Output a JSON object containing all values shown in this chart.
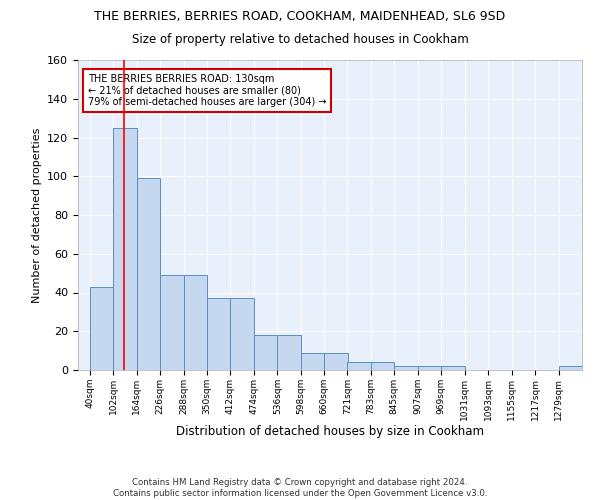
{
  "title1": "THE BERRIES, BERRIES ROAD, COOKHAM, MAIDENHEAD, SL6 9SD",
  "title2": "Size of property relative to detached houses in Cookham",
  "xlabel": "Distribution of detached houses by size in Cookham",
  "ylabel": "Number of detached properties",
  "bin_labels": [
    "40sqm",
    "102sqm",
    "164sqm",
    "226sqm",
    "288sqm",
    "350sqm",
    "412sqm",
    "474sqm",
    "536sqm",
    "598sqm",
    "660sqm",
    "721sqm",
    "783sqm",
    "845sqm",
    "907sqm",
    "969sqm",
    "1031sqm",
    "1093sqm",
    "1155sqm",
    "1217sqm",
    "1279sqm"
  ],
  "bin_edges": [
    40,
    102,
    164,
    226,
    288,
    350,
    412,
    474,
    536,
    598,
    660,
    721,
    783,
    845,
    907,
    969,
    1031,
    1093,
    1155,
    1217,
    1279
  ],
  "bar_heights": [
    43,
    125,
    99,
    49,
    49,
    37,
    37,
    18,
    18,
    9,
    9,
    4,
    4,
    2,
    2,
    2,
    0,
    0,
    0,
    0,
    2
  ],
  "bar_color": "#c5d8f0",
  "bar_edge_color": "#5a8fc2",
  "red_line_x": 130,
  "annotation_text": "THE BERRIES BERRIES ROAD: 130sqm\n← 21% of detached houses are smaller (80)\n79% of semi-detached houses are larger (304) →",
  "annotation_box_color": "#ffffff",
  "annotation_box_edge_color": "#cc0000",
  "ylim": [
    0,
    160
  ],
  "yticks": [
    0,
    20,
    40,
    60,
    80,
    100,
    120,
    140,
    160
  ],
  "bg_color": "#e8f0fb",
  "grid_color": "#ffffff",
  "fig_bg_color": "#ffffff",
  "footer1": "Contains HM Land Registry data © Crown copyright and database right 2024.",
  "footer2": "Contains public sector information licensed under the Open Government Licence v3.0."
}
